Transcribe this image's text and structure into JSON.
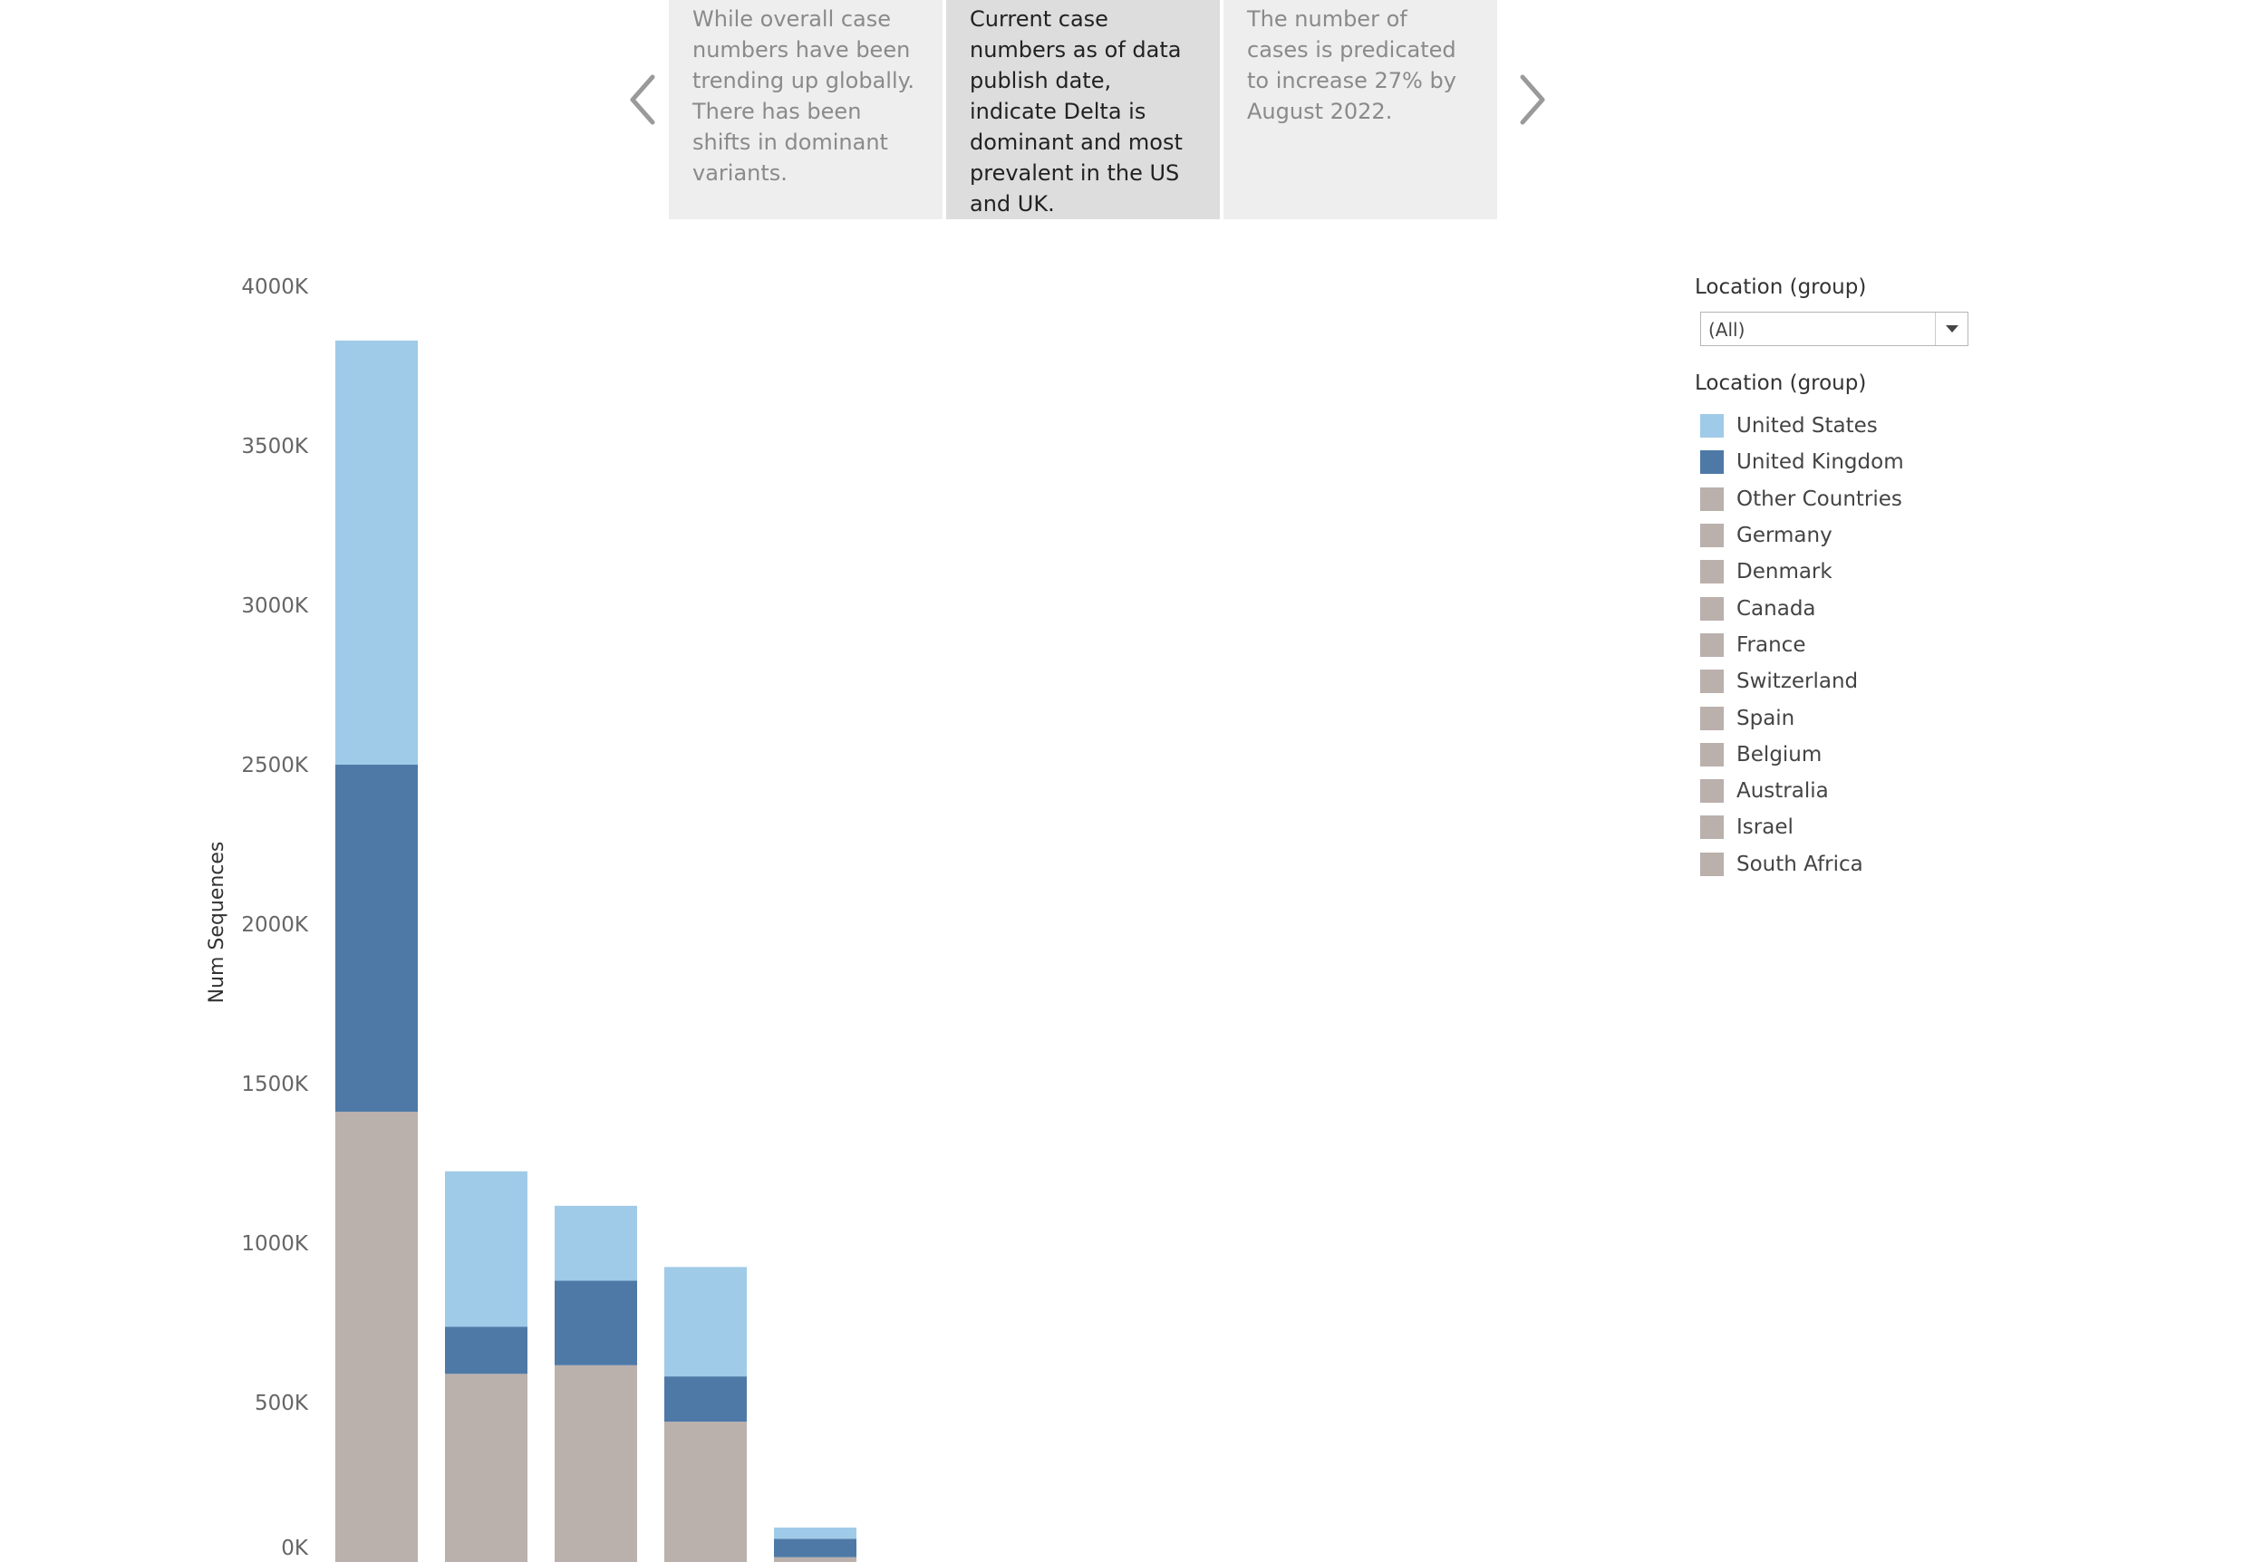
{
  "story": {
    "points": [
      {
        "text": "While overall case numbers have been trending up globally. There has been shifts in dominant variants.",
        "active": false
      },
      {
        "text": "Current case numbers as of data publish date, indicate Delta is dominant and most prevalent  in the US and UK.",
        "active": true
      },
      {
        "text": "The number of cases is predicated to increase 27% by August 2022.",
        "active": false
      }
    ],
    "prev_icon": "chevron-left-icon",
    "next_icon": "chevron-right-icon"
  },
  "filter": {
    "title": "Location (group)",
    "selected": "(All)"
  },
  "legend": {
    "title": "Location (group)",
    "items": [
      {
        "label": "United States",
        "color": "#a0cbe8"
      },
      {
        "label": "United Kingdom",
        "color": "#4e79a7"
      },
      {
        "label": "Other Countries",
        "color": "#bab0ac"
      },
      {
        "label": "Germany",
        "color": "#bab0ac"
      },
      {
        "label": "Denmark",
        "color": "#bab0ac"
      },
      {
        "label": "Canada",
        "color": "#bab0ac"
      },
      {
        "label": "France",
        "color": "#bab0ac"
      },
      {
        "label": "Switzerland",
        "color": "#bab0ac"
      },
      {
        "label": "Spain",
        "color": "#bab0ac"
      },
      {
        "label": "Belgium",
        "color": "#bab0ac"
      },
      {
        "label": "Australia",
        "color": "#bab0ac"
      },
      {
        "label": "Israel",
        "color": "#bab0ac"
      },
      {
        "label": "South Africa",
        "color": "#bab0ac"
      }
    ]
  },
  "chart_data": {
    "type": "bar",
    "stacked": true,
    "ylabel": "Num Sequences",
    "ylim": [
      0,
      4000000
    ],
    "yticks": [
      0,
      500000,
      1000000,
      1500000,
      2000000,
      2500000,
      3000000,
      3500000,
      4000000
    ],
    "ytick_labels": [
      "0K",
      "500K",
      "1000K",
      "1500K",
      "2000K",
      "2500K",
      "3000K",
      "3500K",
      "4000K"
    ],
    "grid": false,
    "legend_position": "right",
    "bar_count": 5,
    "series": [
      {
        "name": "Other Countries",
        "color": "#bab0ac",
        "values": [
          1412000,
          590000,
          617000,
          440000,
          15000
        ]
      },
      {
        "name": "United Kingdom",
        "color": "#4e79a7",
        "values": [
          1088000,
          148000,
          265000,
          142000,
          58000
        ]
      },
      {
        "name": "United States",
        "color": "#a0cbe8",
        "values": [
          1330000,
          487000,
          235000,
          343000,
          35000
        ]
      }
    ]
  }
}
